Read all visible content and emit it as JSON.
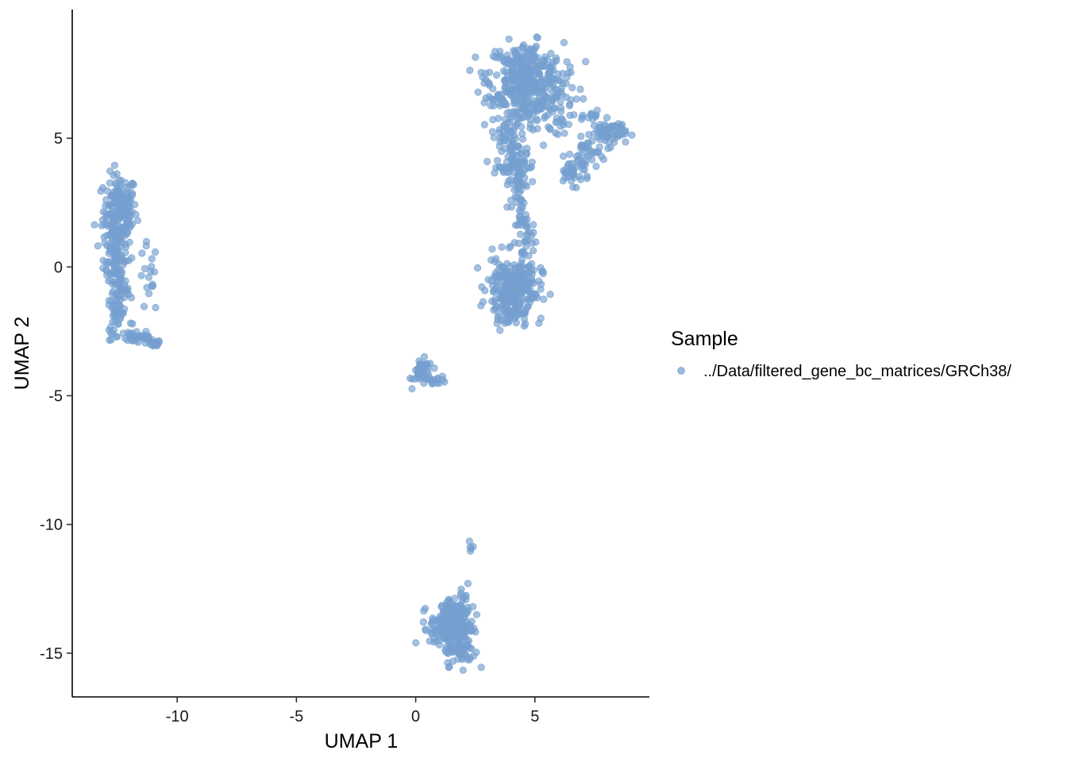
{
  "chart_data": {
    "type": "scatter",
    "xlabel": "UMAP 1",
    "ylabel": "UMAP 2",
    "xlim": [
      -14.4,
      9.8
    ],
    "ylim": [
      -16.7,
      10.0
    ],
    "x_ticks": [
      {
        "value": -10,
        "label": "-10"
      },
      {
        "value": -5,
        "label": "-5"
      },
      {
        "value": 0,
        "label": "0"
      },
      {
        "value": 5,
        "label": "5"
      }
    ],
    "y_ticks": [
      {
        "value": 5,
        "label": "5"
      },
      {
        "value": 0,
        "label": "0"
      },
      {
        "value": -5,
        "label": "-5"
      },
      {
        "value": -10,
        "label": "-10"
      },
      {
        "value": -15,
        "label": "-15"
      }
    ],
    "grid": false,
    "legend": {
      "title": "Sample",
      "placement": "right",
      "entries": [
        {
          "label": "../Data/filtered_gene_bc_matrices/GRCh38/",
          "color": "#749fd0"
        }
      ]
    },
    "series": [
      {
        "label": "../Data/filtered_gene_bc_matrices/GRCh38/",
        "color": "#749fd0",
        "clusters": [
          {
            "cx": -12.4,
            "cy": 2.2,
            "sx": 0.35,
            "sy": 0.7,
            "n": 160
          },
          {
            "cx": -12.6,
            "cy": 0.6,
            "sx": 0.25,
            "sy": 0.9,
            "n": 110
          },
          {
            "cx": -12.4,
            "cy": -0.9,
            "sx": 0.2,
            "sy": 0.5,
            "n": 45
          },
          {
            "cx": -12.6,
            "cy": -2.1,
            "sx": 0.12,
            "sy": 0.4,
            "n": 25
          },
          {
            "cx": -11.7,
            "cy": -2.7,
            "sx": 0.4,
            "sy": 0.15,
            "n": 40
          },
          {
            "cx": -11.0,
            "cy": -3.0,
            "sx": 0.15,
            "sy": 0.08,
            "n": 18
          },
          {
            "cx": -11.2,
            "cy": -0.5,
            "sx": 0.2,
            "sy": 0.7,
            "n": 18
          },
          {
            "cx": 0.3,
            "cy": -4.1,
            "sx": 0.2,
            "sy": 0.25,
            "n": 45
          },
          {
            "cx": 0.9,
            "cy": -4.4,
            "sx": 0.2,
            "sy": 0.08,
            "n": 14
          },
          {
            "cx": 4.6,
            "cy": 7.5,
            "sx": 0.8,
            "sy": 0.6,
            "n": 280
          },
          {
            "cx": 4.9,
            "cy": 6.3,
            "sx": 0.9,
            "sy": 0.6,
            "n": 170
          },
          {
            "cx": 3.9,
            "cy": 5.0,
            "sx": 0.35,
            "sy": 0.6,
            "n": 55
          },
          {
            "cx": 4.2,
            "cy": 3.9,
            "sx": 0.4,
            "sy": 0.5,
            "n": 70
          },
          {
            "cx": 4.4,
            "cy": 2.2,
            "sx": 0.15,
            "sy": 0.8,
            "n": 45
          },
          {
            "cx": 4.7,
            "cy": 0.7,
            "sx": 0.2,
            "sy": 0.6,
            "n": 30
          },
          {
            "cx": 8.1,
            "cy": 5.2,
            "sx": 0.35,
            "sy": 0.25,
            "n": 70
          },
          {
            "cx": 7.2,
            "cy": 4.4,
            "sx": 0.25,
            "sy": 0.3,
            "n": 30
          },
          {
            "cx": 6.6,
            "cy": 3.7,
            "sx": 0.35,
            "sy": 0.25,
            "n": 40
          },
          {
            "cx": 7.5,
            "cy": 5.9,
            "sx": 0.2,
            "sy": 0.15,
            "n": 12
          },
          {
            "cx": 3.8,
            "cy": -0.8,
            "sx": 0.4,
            "sy": 0.6,
            "n": 150
          },
          {
            "cx": 4.5,
            "cy": -0.9,
            "sx": 0.4,
            "sy": 0.6,
            "n": 90
          },
          {
            "cx": 3.9,
            "cy": -1.9,
            "sx": 0.25,
            "sy": 0.3,
            "n": 30
          },
          {
            "cx": 1.5,
            "cy": -14.0,
            "sx": 0.45,
            "sy": 0.4,
            "n": 200
          },
          {
            "cx": 1.9,
            "cy": -14.9,
            "sx": 0.3,
            "sy": 0.3,
            "n": 60
          },
          {
            "cx": 1.6,
            "cy": -13.3,
            "sx": 0.35,
            "sy": 0.25,
            "n": 50
          },
          {
            "cx": 2.0,
            "cy": -12.7,
            "sx": 0.08,
            "sy": 0.4,
            "n": 10
          },
          {
            "cx": 2.3,
            "cy": -10.9,
            "sx": 0.05,
            "sy": 0.2,
            "n": 5
          }
        ]
      }
    ]
  }
}
